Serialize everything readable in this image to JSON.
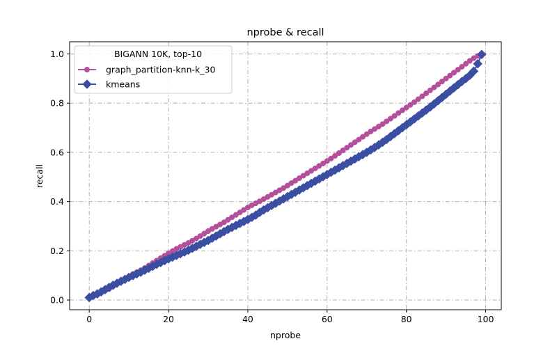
{
  "chart_data": {
    "type": "line",
    "title": "nprobe & recall",
    "xlabel": "nprobe",
    "ylabel": "recall",
    "xlim": [
      -4.95,
      103.95
    ],
    "ylim": [
      -0.0395,
      1.0495
    ],
    "xticks": [
      0,
      20,
      40,
      60,
      80,
      100
    ],
    "yticks": [
      0.0,
      0.2,
      0.4,
      0.6,
      0.8,
      1.0
    ],
    "xtick_labels": [
      "0",
      "20",
      "40",
      "60",
      "80",
      "100"
    ],
    "ytick_labels": [
      "0.0",
      "0.2",
      "0.4",
      "0.6",
      "0.8",
      "1.0"
    ],
    "grid": true,
    "legend": {
      "title": "BIGANN 10K, top-10",
      "placement": "upper-left"
    },
    "x": [
      0,
      1,
      2,
      3,
      4,
      5,
      6,
      7,
      8,
      9,
      10,
      11,
      12,
      13,
      14,
      15,
      16,
      17,
      18,
      19,
      20,
      21,
      22,
      23,
      24,
      25,
      26,
      27,
      28,
      29,
      30,
      31,
      32,
      33,
      34,
      35,
      36,
      37,
      38,
      39,
      40,
      41,
      42,
      43,
      44,
      45,
      46,
      47,
      48,
      49,
      50,
      51,
      52,
      53,
      54,
      55,
      56,
      57,
      58,
      59,
      60,
      61,
      62,
      63,
      64,
      65,
      66,
      67,
      68,
      69,
      70,
      71,
      72,
      73,
      74,
      75,
      76,
      77,
      78,
      79,
      80,
      81,
      82,
      83,
      84,
      85,
      86,
      87,
      88,
      89,
      90,
      91,
      92,
      93,
      94,
      95,
      96,
      97,
      98,
      99
    ],
    "series": [
      {
        "name": "graph_partition-knn-k_30",
        "color": "#b4509b",
        "marker": "circle",
        "values": [
          0.01,
          0.015,
          0.02,
          0.03,
          0.038,
          0.045,
          0.055,
          0.065,
          0.075,
          0.085,
          0.095,
          0.105,
          0.113,
          0.121,
          0.13,
          0.14,
          0.15,
          0.16,
          0.17,
          0.18,
          0.19,
          0.199,
          0.208,
          0.216,
          0.224,
          0.232,
          0.241,
          0.25,
          0.26,
          0.27,
          0.28,
          0.289,
          0.298,
          0.307,
          0.316,
          0.326,
          0.336,
          0.346,
          0.356,
          0.366,
          0.376,
          0.385,
          0.393,
          0.401,
          0.41,
          0.419,
          0.428,
          0.437,
          0.446,
          0.455,
          0.465,
          0.475,
          0.485,
          0.495,
          0.505,
          0.515,
          0.525,
          0.535,
          0.545,
          0.555,
          0.565,
          0.575,
          0.586,
          0.597,
          0.608,
          0.619,
          0.63,
          0.641,
          0.652,
          0.663,
          0.674,
          0.685,
          0.695,
          0.705,
          0.715,
          0.726,
          0.737,
          0.748,
          0.76,
          0.771,
          0.782,
          0.793,
          0.804,
          0.816,
          0.828,
          0.84,
          0.852,
          0.864,
          0.876,
          0.888,
          0.9,
          0.912,
          0.924,
          0.936,
          0.948,
          0.96,
          0.972,
          0.983,
          0.992,
          1.0
        ]
      },
      {
        "name": "kmeans",
        "color": "#3a4ea2",
        "marker": "diamond",
        "values": [
          0.01,
          0.018,
          0.025,
          0.033,
          0.042,
          0.051,
          0.06,
          0.068,
          0.076,
          0.084,
          0.092,
          0.099,
          0.106,
          0.113,
          0.121,
          0.129,
          0.137,
          0.145,
          0.152,
          0.16,
          0.167,
          0.174,
          0.181,
          0.188,
          0.195,
          0.202,
          0.21,
          0.218,
          0.226,
          0.234,
          0.242,
          0.251,
          0.26,
          0.269,
          0.278,
          0.287,
          0.295,
          0.303,
          0.311,
          0.319,
          0.327,
          0.336,
          0.345,
          0.356,
          0.366,
          0.375,
          0.384,
          0.393,
          0.402,
          0.411,
          0.42,
          0.429,
          0.438,
          0.447,
          0.456,
          0.465,
          0.474,
          0.483,
          0.492,
          0.501,
          0.51,
          0.519,
          0.528,
          0.537,
          0.546,
          0.555,
          0.564,
          0.573,
          0.582,
          0.591,
          0.6,
          0.61,
          0.62,
          0.63,
          0.641,
          0.652,
          0.664,
          0.676,
          0.688,
          0.7,
          0.712,
          0.724,
          0.736,
          0.748,
          0.76,
          0.772,
          0.784,
          0.797,
          0.81,
          0.823,
          0.836,
          0.849,
          0.862,
          0.875,
          0.888,
          0.9,
          0.913,
          0.93,
          0.96,
          0.998
        ]
      }
    ]
  }
}
